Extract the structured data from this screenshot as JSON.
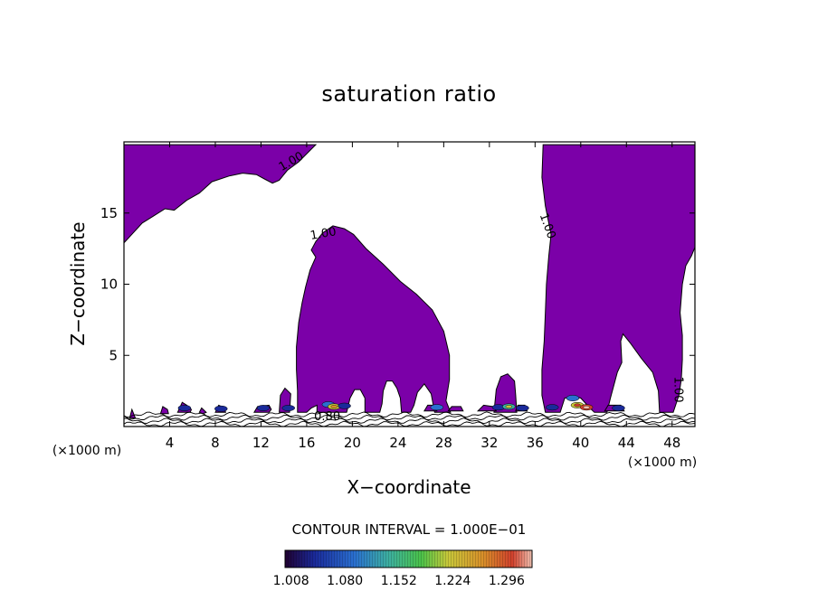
{
  "chart_data": {
    "type": "contour",
    "title": "saturation ratio",
    "xlabel": "X−coordinate",
    "ylabel": "Z−coordinate",
    "x_units": "(×1000 m)",
    "y_units": "(×1000 m)",
    "xlim": [
      0,
      50
    ],
    "ylim": [
      0,
      20
    ],
    "xticks": [
      4,
      8,
      12,
      16,
      20,
      24,
      28,
      32,
      36,
      40,
      44,
      48
    ],
    "yticks": [
      5,
      10,
      15
    ],
    "contour_interval_label": "CONTOUR INTERVAL = 1.000E−01",
    "contour_labels": [
      "1.00",
      "1.00",
      "1.00",
      "1.00",
      "0.80"
    ],
    "colorbar_ticks": [
      "1.008",
      "1.080",
      "1.152",
      "1.224",
      "1.296"
    ],
    "colorbar_range": [
      1.0,
      1.33
    ],
    "fill_color": "#7b00a8",
    "grid": false,
    "regions": [
      {
        "name": "upper-left",
        "points": [
          [
            0,
            12.9
          ],
          [
            0.8,
            13.6
          ],
          [
            1.6,
            14.3
          ],
          [
            2.6,
            14.8
          ],
          [
            3.6,
            15.3
          ],
          [
            4.4,
            15.2
          ],
          [
            5.5,
            15.9
          ],
          [
            6.6,
            16.4
          ],
          [
            7.7,
            17.2
          ],
          [
            9.2,
            17.6
          ],
          [
            10.4,
            17.8
          ],
          [
            11.6,
            17.7
          ],
          [
            12.3,
            17.4
          ],
          [
            13,
            17.1
          ],
          [
            13.6,
            17.3
          ],
          [
            14.3,
            18
          ],
          [
            15.3,
            18.6
          ],
          [
            16.3,
            19.4
          ],
          [
            16.8,
            19.8
          ],
          [
            0,
            19.8
          ]
        ]
      },
      {
        "name": "central",
        "points": [
          [
            15.2,
            1
          ],
          [
            15.2,
            2.5
          ],
          [
            15.1,
            4
          ],
          [
            15.1,
            5.6
          ],
          [
            15.3,
            7.3
          ],
          [
            15.6,
            8.7
          ],
          [
            15.9,
            9.8
          ],
          [
            16.3,
            11
          ],
          [
            16.8,
            11.9
          ],
          [
            16.4,
            12.4
          ],
          [
            16.8,
            13
          ],
          [
            17.4,
            13.6
          ],
          [
            18.3,
            14.1
          ],
          [
            19.3,
            13.9
          ],
          [
            20.1,
            13.5
          ],
          [
            21.2,
            12.5
          ],
          [
            22.7,
            11.4
          ],
          [
            24.2,
            10.2
          ],
          [
            25.6,
            9.3
          ],
          [
            27,
            8.2
          ],
          [
            28,
            6.7
          ],
          [
            28.5,
            5
          ],
          [
            28.5,
            3.3
          ],
          [
            28.2,
            1.8
          ],
          [
            28.6,
            1
          ],
          [
            27.2,
            1
          ],
          [
            26.9,
            2.3
          ],
          [
            26.3,
            3
          ],
          [
            25.7,
            2.4
          ],
          [
            25.4,
            1.5
          ],
          [
            25.1,
            1
          ],
          [
            24.3,
            1
          ],
          [
            24.2,
            2
          ],
          [
            23.9,
            2.7
          ],
          [
            23.5,
            3.2
          ],
          [
            23,
            3.2
          ],
          [
            22.7,
            2.5
          ],
          [
            22.6,
            1.6
          ],
          [
            22.4,
            1
          ],
          [
            21.1,
            1
          ],
          [
            21.1,
            2
          ],
          [
            20.7,
            2.6
          ],
          [
            20.2,
            2.6
          ],
          [
            19.8,
            2
          ],
          [
            19.5,
            1
          ],
          [
            16.9,
            1
          ],
          [
            16.9,
            1.5
          ],
          [
            16.4,
            1.3
          ],
          [
            16,
            1
          ]
        ]
      },
      {
        "name": "right",
        "points": [
          [
            36.7,
            19.8
          ],
          [
            36.6,
            17.5
          ],
          [
            36.9,
            15.5
          ],
          [
            37.4,
            13.5
          ],
          [
            37.2,
            12
          ],
          [
            37,
            10
          ],
          [
            36.9,
            8
          ],
          [
            36.8,
            6
          ],
          [
            36.6,
            4
          ],
          [
            36.6,
            2.2
          ],
          [
            36.9,
            1
          ],
          [
            38.2,
            1
          ],
          [
            38.6,
            2
          ],
          [
            39.5,
            2.1
          ],
          [
            40,
            2
          ],
          [
            40.8,
            1.3
          ],
          [
            41.2,
            1
          ],
          [
            42.3,
            1
          ],
          [
            42.6,
            2
          ],
          [
            43.2,
            3.8
          ],
          [
            43.6,
            4.5
          ],
          [
            43.5,
            6
          ],
          [
            43.7,
            6.5
          ],
          [
            44.4,
            5.8
          ],
          [
            45.3,
            4.8
          ],
          [
            46.3,
            3.8
          ],
          [
            46.8,
            2.5
          ],
          [
            46.9,
            1
          ],
          [
            48.1,
            1
          ],
          [
            48.6,
            2.2
          ],
          [
            48.8,
            3.3
          ],
          [
            48.9,
            4.7
          ],
          [
            48.9,
            6.4
          ],
          [
            48.7,
            8
          ],
          [
            48.9,
            10
          ],
          [
            49.2,
            11.3
          ],
          [
            49.7,
            12
          ],
          [
            50,
            12.6
          ],
          [
            50,
            19.8
          ]
        ]
      },
      {
        "name": "bump-33",
        "points": [
          [
            32.4,
            1
          ],
          [
            32.6,
            2.6
          ],
          [
            33,
            3.5
          ],
          [
            33.6,
            3.7
          ],
          [
            34.2,
            3.2
          ],
          [
            34.3,
            2.2
          ],
          [
            34.4,
            1
          ]
        ]
      },
      {
        "name": "cell-14",
        "points": [
          [
            13.6,
            1
          ],
          [
            13.7,
            2.2
          ],
          [
            14.1,
            2.7
          ],
          [
            14.6,
            2.3
          ],
          [
            14.5,
            1
          ]
        ]
      },
      {
        "name": "cell-5",
        "points": [
          [
            4.7,
            1
          ],
          [
            5.1,
            1.7
          ],
          [
            5.5,
            1.5
          ],
          [
            5.9,
            1.2
          ],
          [
            5.8,
            1
          ]
        ]
      },
      {
        "name": "cell-3.5",
        "points": [
          [
            3.2,
            0.9
          ],
          [
            3.4,
            1.4
          ],
          [
            3.8,
            1.2
          ],
          [
            3.9,
            0.9
          ]
        ]
      },
      {
        "name": "cell-0.7",
        "points": [
          [
            0.5,
            0.6
          ],
          [
            0.7,
            1.2
          ],
          [
            1,
            0.6
          ]
        ]
      },
      {
        "name": "cell-7",
        "points": [
          [
            6.6,
            1
          ],
          [
            6.8,
            1.3
          ],
          [
            7.2,
            1
          ],
          [
            6.9,
            0.9
          ]
        ]
      },
      {
        "name": "cell-8.5",
        "points": [
          [
            8,
            1
          ],
          [
            8.3,
            1.5
          ],
          [
            8.8,
            1.3
          ],
          [
            8.9,
            1
          ]
        ]
      },
      {
        "name": "cell-12",
        "points": [
          [
            11.4,
            1
          ],
          [
            11.7,
            1.4
          ],
          [
            12.7,
            1.5
          ],
          [
            12.9,
            1.2
          ],
          [
            12.7,
            1
          ]
        ]
      },
      {
        "name": "cell-31",
        "points": [
          [
            31,
            1.1
          ],
          [
            31.5,
            1.5
          ],
          [
            32.3,
            1.4
          ],
          [
            32.6,
            1.1
          ]
        ]
      },
      {
        "name": "cell-34",
        "points": [
          [
            34.3,
            1.1
          ],
          [
            34.5,
            1.5
          ],
          [
            35.1,
            1.5
          ],
          [
            35.3,
            1.1
          ]
        ]
      },
      {
        "name": "cell-27",
        "points": [
          [
            26.3,
            1.1
          ],
          [
            26.6,
            1.5
          ],
          [
            27.3,
            1.5
          ],
          [
            27.4,
            1.1
          ]
        ]
      },
      {
        "name": "cell-29",
        "points": [
          [
            28.4,
            1.1
          ],
          [
            28.7,
            1.4
          ],
          [
            29.5,
            1.4
          ],
          [
            29.7,
            1.1
          ]
        ]
      },
      {
        "name": "cell-43",
        "points": [
          [
            42.1,
            1.1
          ],
          [
            42.4,
            1.5
          ],
          [
            43.5,
            1.5
          ],
          [
            43.8,
            1.1
          ]
        ]
      }
    ],
    "hotspots": [
      {
        "x": 5.3,
        "z": 1.3,
        "level": 1.06
      },
      {
        "x": 8.5,
        "z": 1.25,
        "level": 1.04
      },
      {
        "x": 12.2,
        "z": 1.3,
        "level": 1.05
      },
      {
        "x": 14.4,
        "z": 1.3,
        "level": 1.06
      },
      {
        "x": 17.9,
        "z": 1.55,
        "level": 1.12
      },
      {
        "x": 18.4,
        "z": 1.4,
        "level": 1.22
      },
      {
        "x": 19.3,
        "z": 1.45,
        "level": 1.07
      },
      {
        "x": 27.4,
        "z": 1.35,
        "level": 1.12
      },
      {
        "x": 32.8,
        "z": 1.35,
        "level": 1.06
      },
      {
        "x": 33.7,
        "z": 1.4,
        "level": 1.17
      },
      {
        "x": 34.9,
        "z": 1.3,
        "level": 1.08
      },
      {
        "x": 39.7,
        "z": 1.5,
        "level": 1.24
      },
      {
        "x": 40.5,
        "z": 1.35,
        "level": 1.3
      },
      {
        "x": 39.3,
        "z": 2.0,
        "level": 1.1
      },
      {
        "x": 43.3,
        "z": 1.3,
        "level": 1.08
      },
      {
        "x": 37.5,
        "z": 1.35,
        "level": 1.06
      }
    ],
    "surface_contours": [
      0.95,
      0.9,
      0.85,
      0.8
    ],
    "label_positions": [
      {
        "x": 14.8,
        "z": 18.4,
        "rot": -30
      },
      {
        "x": 17.5,
        "z": 13.3,
        "rot": -10
      },
      {
        "x": 36.8,
        "z": 14.0,
        "rot": 70
      },
      {
        "x": 48.2,
        "z": 2.6,
        "rot": 90
      },
      {
        "x": 17.8,
        "z": 0.45,
        "rot": 0
      }
    ]
  }
}
